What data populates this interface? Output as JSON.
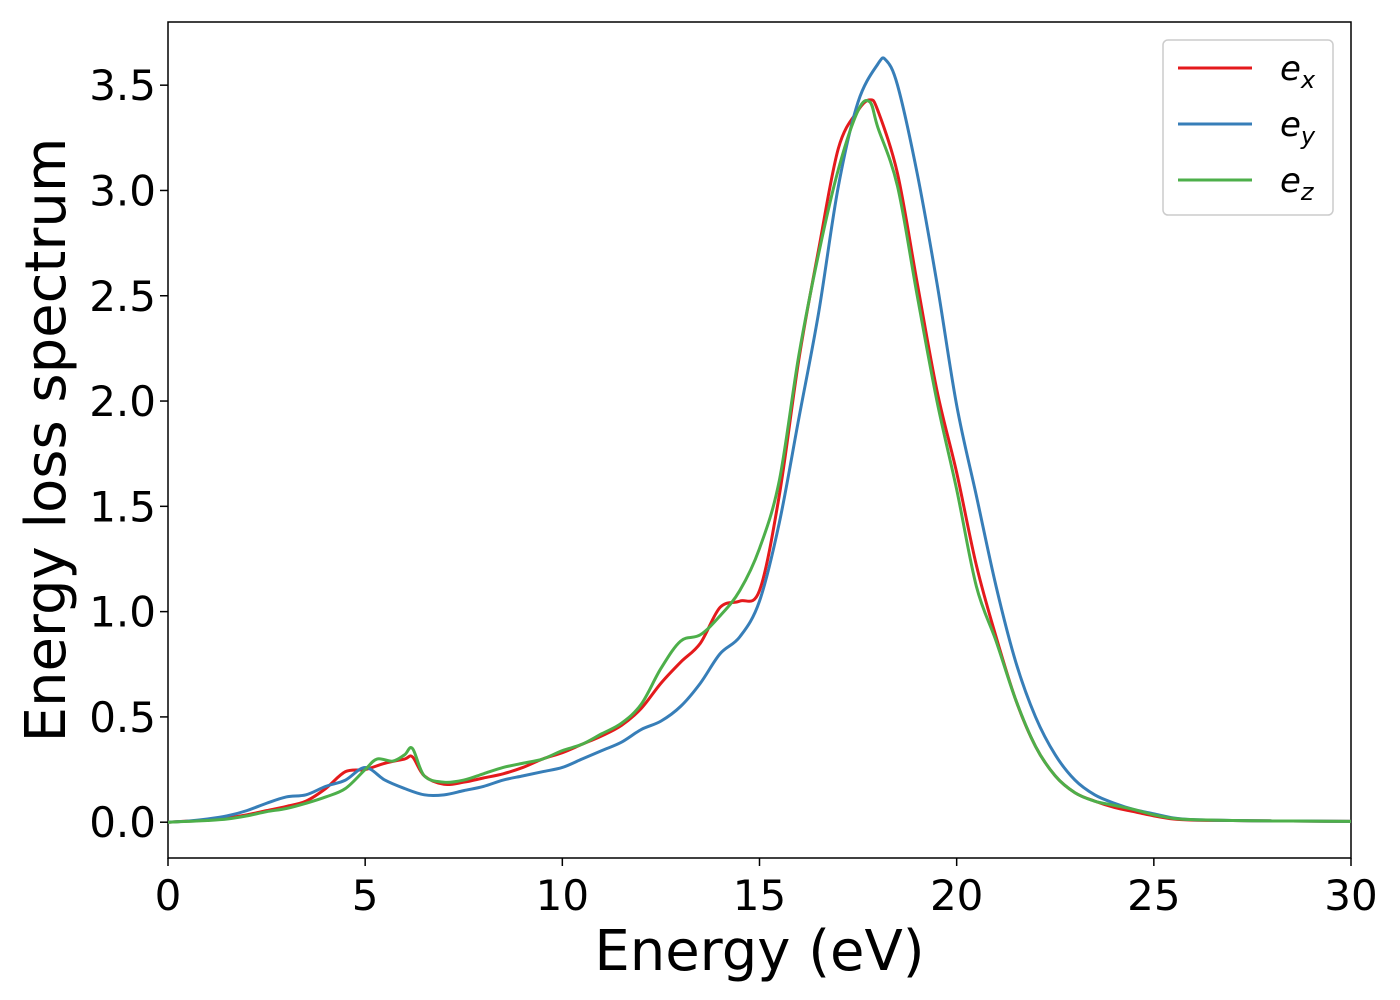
{
  "chart_data": {
    "type": "line",
    "xlabel": "Energy (eV)",
    "ylabel": "Energy loss spectrum",
    "xlim": [
      0,
      30
    ],
    "ylim": [
      -0.17,
      3.8
    ],
    "xticks": [
      0,
      5,
      10,
      15,
      20,
      25,
      30
    ],
    "xtick_labels": [
      "0",
      "5",
      "10",
      "15",
      "20",
      "25",
      "30"
    ],
    "yticks": [
      0.0,
      0.5,
      1.0,
      1.5,
      2.0,
      2.5,
      3.0,
      3.5
    ],
    "ytick_labels": [
      "0.0",
      "0.5",
      "1.0",
      "1.5",
      "2.0",
      "2.5",
      "3.0",
      "3.5"
    ],
    "grid": false,
    "legend_position": "top-right",
    "series": [
      {
        "name": "e",
        "subscript": "x",
        "color": "#e41a1c",
        "x": [
          0,
          0.5,
          1,
          1.5,
          2,
          2.5,
          3,
          3.5,
          4,
          4.5,
          5,
          5.5,
          6,
          6.2,
          6.5,
          7,
          7.5,
          8,
          8.5,
          9,
          9.5,
          10,
          10.5,
          11,
          11.5,
          12,
          12.5,
          13,
          13.5,
          14,
          14.5,
          15,
          15.5,
          16,
          16.5,
          17,
          17.5,
          17.8,
          18,
          18.5,
          19,
          19.5,
          20,
          20.5,
          21,
          21.5,
          22,
          22.5,
          23,
          23.5,
          24,
          24.5,
          25,
          25.5,
          26,
          27,
          28,
          29,
          30
        ],
        "y": [
          0.0,
          0.005,
          0.01,
          0.02,
          0.035,
          0.055,
          0.075,
          0.1,
          0.16,
          0.24,
          0.25,
          0.28,
          0.3,
          0.31,
          0.22,
          0.18,
          0.19,
          0.21,
          0.23,
          0.26,
          0.3,
          0.33,
          0.37,
          0.41,
          0.46,
          0.54,
          0.66,
          0.76,
          0.85,
          1.02,
          1.05,
          1.1,
          1.55,
          2.2,
          2.72,
          3.2,
          3.38,
          3.43,
          3.38,
          3.08,
          2.56,
          2.05,
          1.66,
          1.22,
          0.88,
          0.58,
          0.36,
          0.22,
          0.14,
          0.1,
          0.07,
          0.05,
          0.03,
          0.015,
          0.01,
          0.008,
          0.006,
          0.005,
          0.004
        ]
      },
      {
        "name": "e",
        "subscript": "y",
        "color": "#377eb8",
        "x": [
          0,
          0.5,
          1,
          1.5,
          2,
          2.5,
          3,
          3.5,
          4,
          4.5,
          5,
          5.5,
          6,
          6.5,
          7,
          7.5,
          8,
          8.5,
          9,
          9.5,
          10,
          10.5,
          11,
          11.5,
          12,
          12.5,
          13,
          13.5,
          14,
          14.5,
          15,
          15.5,
          16,
          16.5,
          17,
          17.5,
          18,
          18.2,
          18.5,
          19,
          19.5,
          20,
          20.5,
          21,
          21.5,
          22,
          22.5,
          23,
          23.5,
          24,
          24.5,
          25,
          25.5,
          26,
          27,
          28,
          29,
          30
        ],
        "y": [
          0.0,
          0.005,
          0.015,
          0.03,
          0.055,
          0.09,
          0.12,
          0.13,
          0.17,
          0.2,
          0.26,
          0.2,
          0.16,
          0.13,
          0.13,
          0.15,
          0.17,
          0.2,
          0.22,
          0.24,
          0.26,
          0.3,
          0.34,
          0.38,
          0.44,
          0.48,
          0.55,
          0.66,
          0.8,
          0.88,
          1.05,
          1.42,
          1.92,
          2.42,
          3.02,
          3.42,
          3.6,
          3.62,
          3.5,
          3.08,
          2.56,
          1.98,
          1.55,
          1.12,
          0.76,
          0.5,
          0.32,
          0.2,
          0.13,
          0.09,
          0.06,
          0.04,
          0.02,
          0.012,
          0.008,
          0.006,
          0.005,
          0.004
        ]
      },
      {
        "name": "e",
        "subscript": "z",
        "color": "#4daf4a",
        "x": [
          0,
          0.5,
          1,
          1.5,
          2,
          2.5,
          3,
          3.5,
          4,
          4.5,
          5,
          5.3,
          5.7,
          6,
          6.2,
          6.5,
          7,
          7.5,
          8,
          8.5,
          9,
          9.5,
          10,
          10.5,
          11,
          11.5,
          12,
          12.5,
          13,
          13.5,
          14,
          14.5,
          15,
          15.5,
          16,
          16.5,
          17,
          17.5,
          17.8,
          18,
          18.5,
          19,
          19.5,
          20,
          20.5,
          21,
          21.5,
          22,
          22.5,
          23,
          23.5,
          24,
          24.5,
          25,
          25.5,
          26,
          27,
          28,
          29,
          30
        ],
        "y": [
          0.0,
          0.004,
          0.008,
          0.015,
          0.03,
          0.05,
          0.065,
          0.09,
          0.12,
          0.16,
          0.25,
          0.3,
          0.29,
          0.32,
          0.35,
          0.22,
          0.19,
          0.2,
          0.23,
          0.26,
          0.28,
          0.3,
          0.34,
          0.37,
          0.42,
          0.47,
          0.56,
          0.73,
          0.86,
          0.89,
          0.98,
          1.1,
          1.3,
          1.62,
          2.22,
          2.7,
          3.1,
          3.38,
          3.42,
          3.3,
          3.02,
          2.5,
          2.0,
          1.58,
          1.12,
          0.86,
          0.58,
          0.36,
          0.22,
          0.14,
          0.1,
          0.08,
          0.06,
          0.035,
          0.018,
          0.012,
          0.008,
          0.006,
          0.005,
          0.004
        ]
      }
    ]
  }
}
